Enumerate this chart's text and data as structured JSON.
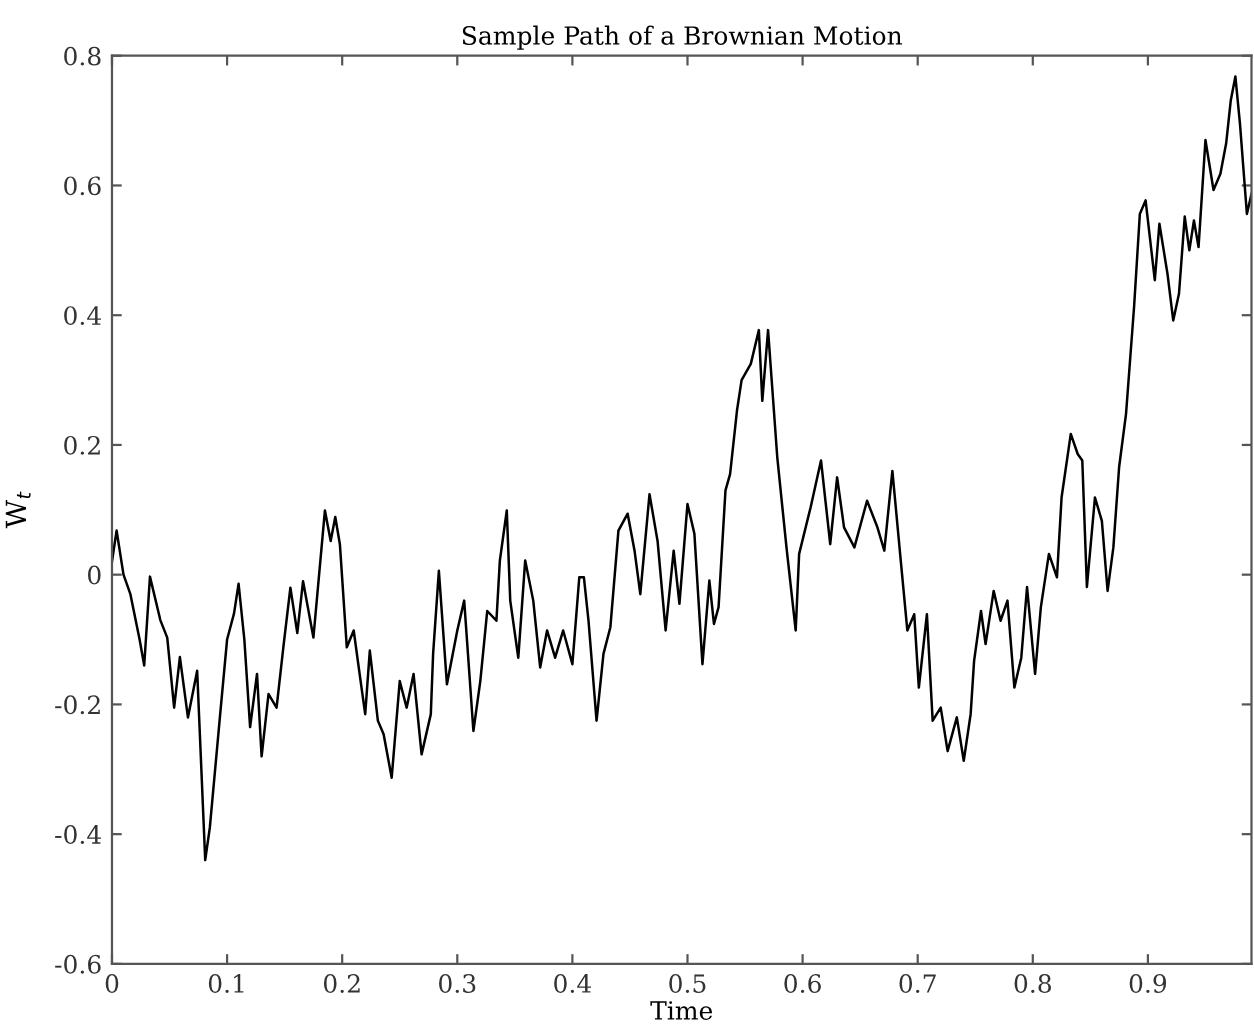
{
  "chart_data": {
    "type": "line",
    "title": "Sample Path of a Brownian Motion",
    "xlabel": "Time",
    "ylabel": "W$_{t}$",
    "x": [
      0,
      0.004,
      0.01,
      0.016,
      0.024,
      0.028,
      0.033,
      0.042,
      0.048,
      0.054,
      0.059,
      0.066,
      0.074,
      0.081,
      0.085,
      0.094,
      0.1,
      0.106,
      0.11,
      0.115,
      0.12,
      0.126,
      0.13,
      0.136,
      0.143,
      0.149,
      0.155,
      0.161,
      0.166,
      0.175,
      0.185,
      0.19,
      0.194,
      0.198,
      0.204,
      0.21,
      0.216,
      0.22,
      0.224,
      0.231,
      0.236,
      0.243,
      0.25,
      0.256,
      0.262,
      0.269,
      0.277,
      0.279,
      0.284,
      0.291,
      0.3,
      0.306,
      0.314,
      0.32,
      0.326,
      0.334,
      0.337,
      0.343,
      0.346,
      0.353,
      0.359,
      0.366,
      0.372,
      0.378,
      0.385,
      0.392,
      0.4,
      0.406,
      0.41,
      0.414,
      0.421,
      0.427,
      0.433,
      0.44,
      0.448,
      0.454,
      0.459,
      0.467,
      0.474,
      0.481,
      0.488,
      0.493,
      0.5,
      0.506,
      0.513,
      0.519,
      0.523,
      0.527,
      0.533,
      0.537,
      0.543,
      0.547,
      0.555,
      0.562,
      0.565,
      0.57,
      0.578,
      0.586,
      0.594,
      0.597,
      0.607,
      0.616,
      0.624,
      0.63,
      0.636,
      0.645,
      0.656,
      0.665,
      0.671,
      0.678,
      0.685,
      0.691,
      0.697,
      0.701,
      0.708,
      0.713,
      0.72,
      0.726,
      0.734,
      0.74,
      0.746,
      0.749,
      0.755,
      0.759,
      0.766,
      0.772,
      0.778,
      0.784,
      0.79,
      0.795,
      0.802,
      0.807,
      0.814,
      0.821,
      0.825,
      0.833,
      0.839,
      0.843,
      0.847,
      0.854,
      0.86,
      0.865,
      0.87,
      0.875,
      0.881,
      0.888,
      0.893,
      0.898,
      0.906,
      0.91,
      0.917,
      0.922,
      0.927,
      0.932,
      0.936,
      0.94,
      0.944,
      0.95,
      0.957,
      0.963,
      0.968,
      0.972,
      0.976,
      0.98,
      0.986,
      0.99
    ],
    "series": [
      {
        "color": "#000000",
        "values": [
          0.02,
          0.068,
          0.0,
          -0.03,
          -0.1,
          -0.14,
          -0.003,
          -0.07,
          -0.097,
          -0.205,
          -0.127,
          -0.22,
          -0.148,
          -0.44,
          -0.39,
          -0.215,
          -0.1,
          -0.06,
          -0.014,
          -0.1,
          -0.235,
          -0.153,
          -0.28,
          -0.184,
          -0.205,
          -0.11,
          -0.02,
          -0.09,
          -0.01,
          -0.097,
          0.099,
          0.052,
          0.089,
          0.047,
          -0.112,
          -0.086,
          -0.164,
          -0.215,
          -0.117,
          -0.225,
          -0.246,
          -0.313,
          -0.164,
          -0.205,
          -0.153,
          -0.277,
          -0.215,
          -0.122,
          0.006,
          -0.169,
          -0.086,
          -0.04,
          -0.241,
          -0.164,
          -0.056,
          -0.071,
          0.022,
          0.099,
          -0.04,
          -0.128,
          0.022,
          -0.04,
          -0.143,
          -0.086,
          -0.128,
          -0.086,
          -0.138,
          -0.004,
          -0.004,
          -0.071,
          -0.225,
          -0.122,
          -0.081,
          0.068,
          0.094,
          0.037,
          -0.03,
          0.124,
          0.052,
          -0.086,
          0.037,
          -0.045,
          0.109,
          0.063,
          -0.138,
          -0.009,
          -0.076,
          -0.05,
          0.13,
          0.155,
          0.253,
          0.3,
          0.325,
          0.377,
          0.268,
          0.377,
          0.181,
          0.042,
          -0.086,
          0.032,
          0.104,
          0.176,
          0.047,
          0.15,
          0.073,
          0.042,
          0.114,
          0.073,
          0.037,
          0.16,
          0.027,
          -0.086,
          -0.061,
          -0.174,
          -0.061,
          -0.225,
          -0.205,
          -0.272,
          -0.22,
          -0.287,
          -0.215,
          -0.133,
          -0.056,
          -0.107,
          -0.025,
          -0.071,
          -0.04,
          -0.174,
          -0.128,
          -0.019,
          -0.153,
          -0.05,
          0.032,
          -0.004,
          0.119,
          0.217,
          0.186,
          0.176,
          -0.019,
          0.119,
          0.083,
          -0.025,
          0.042,
          0.166,
          0.248,
          0.413,
          0.556,
          0.577,
          0.454,
          0.541,
          0.464,
          0.392,
          0.433,
          0.552,
          0.5,
          0.546,
          0.505,
          0.67,
          0.593,
          0.618,
          0.665,
          0.731,
          0.768,
          0.695,
          0.556,
          0.587
        ]
      }
    ],
    "xlim": [
      0,
      0.99
    ],
    "xticks": [
      0,
      0.1,
      0.2,
      0.3,
      0.4,
      0.5,
      0.6,
      0.7,
      0.8,
      0.9
    ],
    "ylim": [
      -0.6,
      0.8
    ],
    "yticks": [
      -0.6,
      -0.4,
      -0.2,
      0,
      0.2,
      0.4,
      0.6,
      0.8
    ],
    "grid": false,
    "legend": false,
    "line_style": "solid",
    "marker": "none"
  }
}
